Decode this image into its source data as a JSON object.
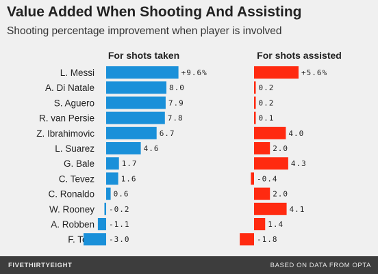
{
  "header": {
    "title": "Value Added When Shooting And Assisting",
    "subtitle": "Shooting percentage improvement when player is involved"
  },
  "footer": {
    "brand": "FIVETHIRTYEIGHT",
    "source": "BASED ON DATA FROM OPTA"
  },
  "colors": {
    "shots_taken": "#1a90d9",
    "shots_assisted": "#ff2a10",
    "background": "#f0f0f0",
    "footer": "#3d3d3d"
  },
  "chart_data": {
    "type": "bar",
    "orientation": "horizontal",
    "categories": [
      "L. Messi",
      "A. Di Natale",
      "S. Aguero",
      "R. van Persie",
      "Z. Ibrahimovic",
      "L. Suarez",
      "G. Bale",
      "C. Tevez",
      "C. Ronaldo",
      "W. Rooney",
      "A. Robben",
      "F. Totti"
    ],
    "series": [
      {
        "name": "For shots taken",
        "values": [
          9.6,
          8.0,
          7.9,
          7.8,
          6.7,
          4.6,
          1.7,
          1.6,
          0.6,
          -0.2,
          -1.1,
          -3.0
        ],
        "labels": [
          "+9.6%",
          "8.0",
          "7.9",
          "7.8",
          "6.7",
          "4.6",
          "1.7",
          "1.6",
          "0.6",
          "-0.2",
          "-1.1",
          "-3.0"
        ]
      },
      {
        "name": "For shots assisted",
        "values": [
          5.6,
          0.2,
          0.2,
          0.1,
          4.0,
          2.0,
          4.3,
          -0.4,
          2.0,
          4.1,
          1.4,
          -1.8
        ],
        "labels": [
          "+5.6%",
          "0.2",
          "0.2",
          "0.1",
          "4.0",
          "2.0",
          "4.3",
          "-0.4",
          "2.0",
          "4.1",
          "1.4",
          "-1.8"
        ]
      }
    ],
    "title": "Value Added When Shooting And Assisting",
    "subtitle": "Shooting percentage improvement when player is involved"
  }
}
